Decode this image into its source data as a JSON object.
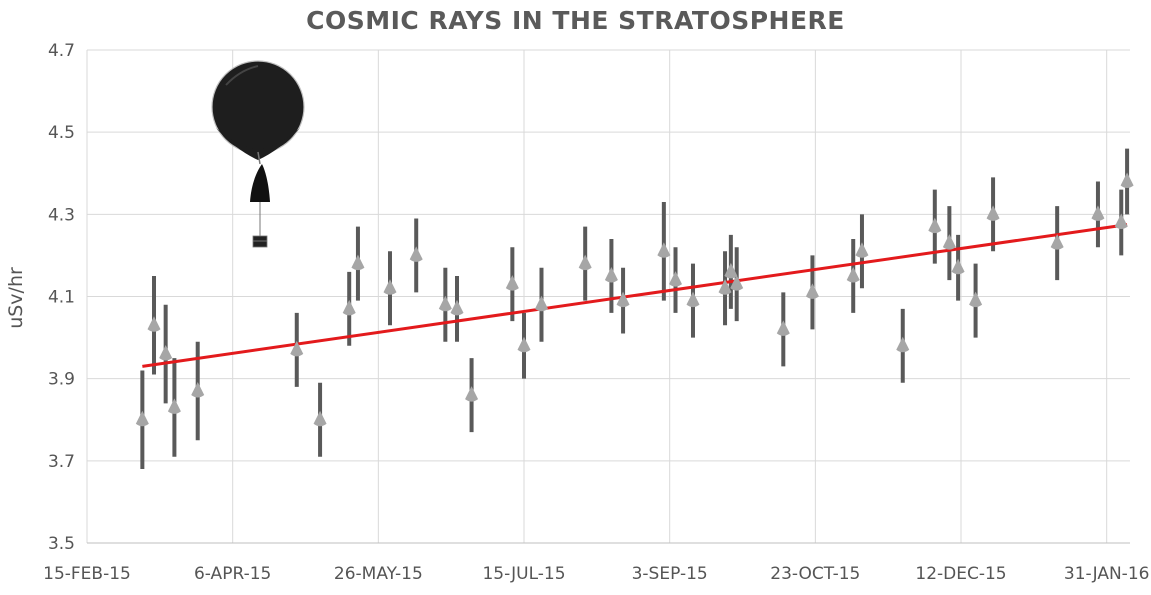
{
  "chart_data": {
    "type": "scatter",
    "title": "COSMIC RAYS IN THE STRATOSPHERE",
    "xlabel": "",
    "ylabel": "uSv/hr",
    "ylim": [
      3.5,
      4.7
    ],
    "y_ticks": [
      "3.5",
      "3.7",
      "3.9",
      "4.1",
      "4.3",
      "4.5",
      "4.7"
    ],
    "x_ticks": [
      "15-FEB-15",
      "6-APR-15",
      "26-MAY-15",
      "15-JUL-15",
      "3-SEP-15",
      "23-OCT-15",
      "12-DEC-15",
      "31-JAN-16"
    ],
    "x_tick_dates": [
      "2015-02-15",
      "2015-04-06",
      "2015-05-26",
      "2015-07-15",
      "2015-09-03",
      "2015-10-23",
      "2015-12-12",
      "2016-01-31"
    ],
    "xlim": [
      "2015-02-15",
      "2016-02-08"
    ],
    "grid": true,
    "marker_color": "#a6a6a6",
    "error_bar_color": "#595959",
    "trendline_color": "#e31a1c",
    "points": [
      {
        "x": "2015-03-06",
        "y": 3.8,
        "err": 0.12
      },
      {
        "x": "2015-03-10",
        "y": 4.03,
        "err": 0.12
      },
      {
        "x": "2015-03-14",
        "y": 3.96,
        "err": 0.12
      },
      {
        "x": "2015-03-17",
        "y": 3.83,
        "err": 0.12
      },
      {
        "x": "2015-03-25",
        "y": 3.87,
        "err": 0.12
      },
      {
        "x": "2015-04-28",
        "y": 3.97,
        "err": 0.09
      },
      {
        "x": "2015-05-06",
        "y": 3.8,
        "err": 0.09
      },
      {
        "x": "2015-05-16",
        "y": 4.07,
        "err": 0.09
      },
      {
        "x": "2015-05-19",
        "y": 4.18,
        "err": 0.09
      },
      {
        "x": "2015-05-30",
        "y": 4.12,
        "err": 0.09
      },
      {
        "x": "2015-06-08",
        "y": 4.2,
        "err": 0.09
      },
      {
        "x": "2015-06-18",
        "y": 4.08,
        "err": 0.09
      },
      {
        "x": "2015-06-22",
        "y": 4.07,
        "err": 0.08
      },
      {
        "x": "2015-06-27",
        "y": 3.86,
        "err": 0.09
      },
      {
        "x": "2015-07-11",
        "y": 4.13,
        "err": 0.09
      },
      {
        "x": "2015-07-15",
        "y": 3.98,
        "err": 0.08
      },
      {
        "x": "2015-07-21",
        "y": 4.08,
        "err": 0.09
      },
      {
        "x": "2015-08-05",
        "y": 4.18,
        "err": 0.09
      },
      {
        "x": "2015-08-14",
        "y": 4.15,
        "err": 0.09
      },
      {
        "x": "2015-08-18",
        "y": 4.09,
        "err": 0.08
      },
      {
        "x": "2015-09-01",
        "y": 4.21,
        "err": 0.12
      },
      {
        "x": "2015-09-05",
        "y": 4.14,
        "err": 0.08
      },
      {
        "x": "2015-09-11",
        "y": 4.09,
        "err": 0.09
      },
      {
        "x": "2015-09-22",
        "y": 4.12,
        "err": 0.09
      },
      {
        "x": "2015-09-24",
        "y": 4.16,
        "err": 0.09
      },
      {
        "x": "2015-09-26",
        "y": 4.13,
        "err": 0.09
      },
      {
        "x": "2015-10-12",
        "y": 4.02,
        "err": 0.09
      },
      {
        "x": "2015-10-22",
        "y": 4.11,
        "err": 0.09
      },
      {
        "x": "2015-11-05",
        "y": 4.15,
        "err": 0.09
      },
      {
        "x": "2015-11-08",
        "y": 4.21,
        "err": 0.09
      },
      {
        "x": "2015-11-22",
        "y": 3.98,
        "err": 0.09
      },
      {
        "x": "2015-12-03",
        "y": 4.27,
        "err": 0.09
      },
      {
        "x": "2015-12-08",
        "y": 4.23,
        "err": 0.09
      },
      {
        "x": "2015-12-11",
        "y": 4.17,
        "err": 0.08
      },
      {
        "x": "2015-12-17",
        "y": 4.09,
        "err": 0.09
      },
      {
        "x": "2015-12-23",
        "y": 4.3,
        "err": 0.09
      },
      {
        "x": "2016-01-14",
        "y": 4.23,
        "err": 0.09
      },
      {
        "x": "2016-01-28",
        "y": 4.3,
        "err": 0.08
      },
      {
        "x": "2016-02-05",
        "y": 4.28,
        "err": 0.08
      },
      {
        "x": "2016-02-07",
        "y": 4.38,
        "err": 0.08
      }
    ],
    "trendline": {
      "x": [
        "2015-03-06",
        "2016-02-07"
      ],
      "y": [
        3.93,
        4.275
      ]
    }
  }
}
